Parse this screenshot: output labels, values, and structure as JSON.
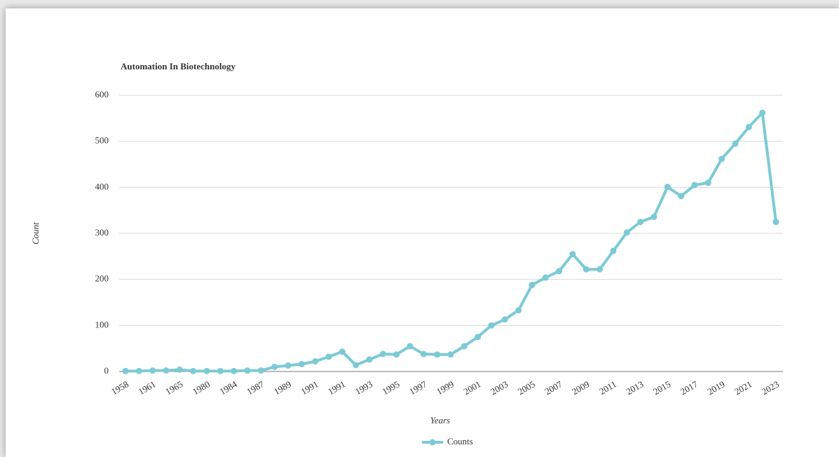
{
  "chart_data": {
    "type": "line",
    "title": "Automation In Biotechnology",
    "x_label": "Years",
    "y_label": "Count",
    "categories": [
      "1958",
      null,
      "1961",
      null,
      "1965",
      null,
      "1980",
      null,
      "1984",
      null,
      "1987",
      null,
      "1989",
      null,
      "1991",
      null,
      "1991",
      null,
      "1993",
      null,
      "1995",
      null,
      "1997",
      null,
      "1999",
      null,
      "2001",
      null,
      "2003",
      null,
      "2005",
      null,
      "2007",
      null,
      "2009",
      null,
      "2011",
      null,
      "2013",
      null,
      "2015",
      null,
      "2017",
      null,
      "2019",
      null,
      "2021",
      null,
      "2023"
    ],
    "series": [
      {
        "name": "Counts",
        "color": "#7ccad5",
        "values": [
          1,
          1,
          2,
          2,
          4,
          1,
          1,
          1,
          1,
          2,
          2,
          10,
          13,
          16,
          22,
          32,
          43,
          14,
          26,
          38,
          37,
          55,
          38,
          37,
          37,
          55,
          75,
          100,
          113,
          133,
          188,
          204,
          218,
          255,
          222,
          222,
          262,
          302,
          325,
          336,
          401,
          381,
          405,
          410,
          462,
          495,
          531,
          562,
          325
        ]
      }
    ],
    "ylim": [
      0,
      600
    ],
    "yticks": [
      0,
      100,
      200,
      300,
      400,
      500,
      600
    ],
    "grid": true,
    "legend": "bottom"
  }
}
